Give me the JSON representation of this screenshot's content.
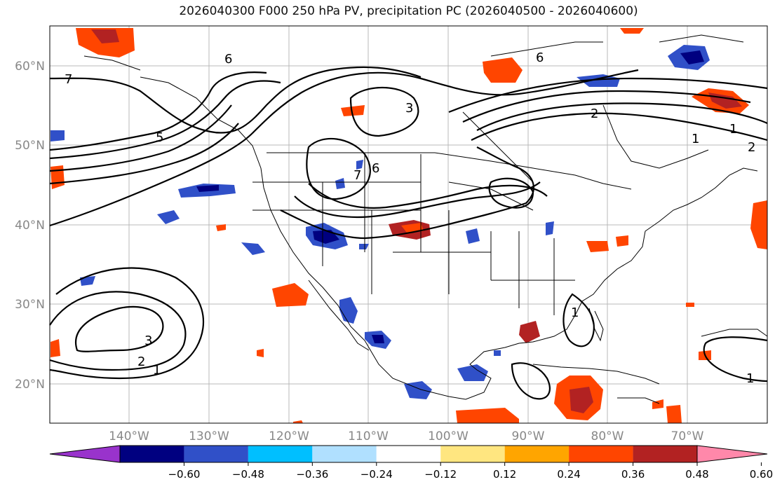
{
  "title": "2026040300 F000 250 hPa PV, precipitation PC (2026040500 - 2026040600)",
  "map": {
    "lon_range": [
      -150,
      -60
    ],
    "lat_range": [
      15,
      65
    ],
    "lat_labels": [
      "20°N",
      "30°N",
      "40°N",
      "50°N",
      "60°N"
    ],
    "lon_labels": [
      "140°W",
      "130°W",
      "120°W",
      "110°W",
      "100°W",
      "90°W",
      "80°W",
      "70°W"
    ]
  },
  "pv_contour_labels": [
    "7",
    "6",
    "6",
    "5",
    "3",
    "2",
    "1",
    "7",
    "6",
    "2",
    "1",
    "3",
    "2",
    "1",
    "1",
    "1"
  ],
  "colorbar": {
    "tick_labels": [
      "−0.60",
      "−0.48",
      "−0.36",
      "−0.24",
      "−0.12",
      "0.12",
      "0.24",
      "0.36",
      "0.48",
      "0.60"
    ],
    "colors": [
      "#9933cc",
      "#000080",
      "#3050c8",
      "#00bfff",
      "#b0e0ff",
      "#ffffff",
      "#ffe680",
      "#ffa500",
      "#ff4500",
      "#b22222",
      "#ff88aa"
    ]
  }
}
